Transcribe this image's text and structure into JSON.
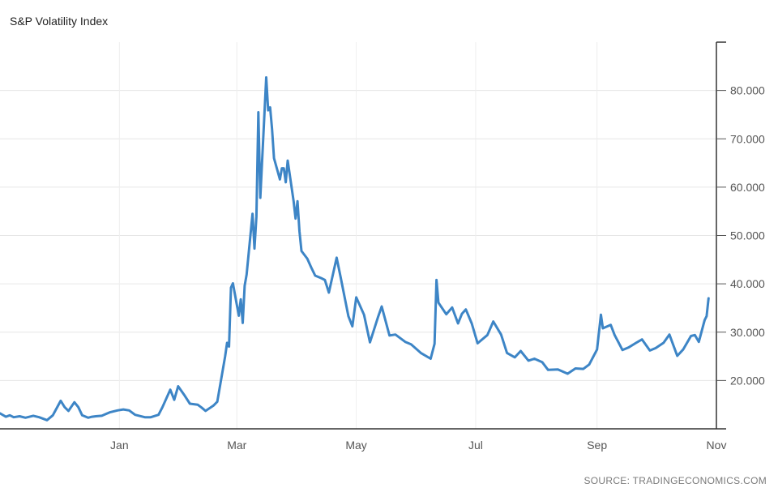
{
  "chart_data": {
    "type": "line",
    "title": "S&P Volatility Index",
    "source": "SOURCE: TRADINGECONOMICS.COM",
    "line_color": "#3d85c6",
    "grid": true,
    "y_axis_side": "right",
    "ylim": [
      10,
      90
    ],
    "yticks": [
      20,
      30,
      40,
      50,
      60,
      70,
      80
    ],
    "ytick_labels": [
      "20.000",
      "30.000",
      "40.000",
      "50.000",
      "60.000",
      "70.000",
      "80.000"
    ],
    "xlim": [
      "2019-11-01",
      "2020-11-01"
    ],
    "xticks": [
      "2020-01-01",
      "2020-03-01",
      "2020-05-01",
      "2020-07-01",
      "2020-09-01",
      "2020-11-01"
    ],
    "xtick_labels": [
      "Jan",
      "Mar",
      "May",
      "Jul",
      "Sep",
      "Nov"
    ],
    "series": [
      {
        "x": [
          "2019-11-01",
          "2019-11-04",
          "2019-11-06",
          "2019-11-08",
          "2019-11-11",
          "2019-11-14",
          "2019-11-18",
          "2019-11-21",
          "2019-11-25",
          "2019-11-28",
          "2019-12-02",
          "2019-12-04",
          "2019-12-06",
          "2019-12-09",
          "2019-12-11",
          "2019-12-13",
          "2019-12-16",
          "2019-12-18",
          "2019-12-20",
          "2019-12-23",
          "2019-12-27",
          "2019-12-31",
          "2020-01-03",
          "2020-01-06",
          "2020-01-09",
          "2020-01-14",
          "2020-01-17",
          "2020-01-21",
          "2020-01-23",
          "2020-01-27",
          "2020-01-29",
          "2020-01-31",
          "2020-02-03",
          "2020-02-06",
          "2020-02-10",
          "2020-02-12",
          "2020-02-14",
          "2020-02-18",
          "2020-02-20",
          "2020-02-24",
          "2020-02-25",
          "2020-02-26",
          "2020-02-27",
          "2020-02-28",
          "2020-03-02",
          "2020-03-03",
          "2020-03-04",
          "2020-03-05",
          "2020-03-06",
          "2020-03-09",
          "2020-03-10",
          "2020-03-11",
          "2020-03-12",
          "2020-03-13",
          "2020-03-16",
          "2020-03-17",
          "2020-03-18",
          "2020-03-19",
          "2020-03-20",
          "2020-03-23",
          "2020-03-24",
          "2020-03-25",
          "2020-03-26",
          "2020-03-27",
          "2020-03-30",
          "2020-03-31",
          "2020-04-01",
          "2020-04-02",
          "2020-04-03",
          "2020-04-06",
          "2020-04-08",
          "2020-04-10",
          "2020-04-13",
          "2020-04-15",
          "2020-04-17",
          "2020-04-21",
          "2020-04-23",
          "2020-04-27",
          "2020-04-29",
          "2020-05-01",
          "2020-05-05",
          "2020-05-08",
          "2020-05-12",
          "2020-05-14",
          "2020-05-18",
          "2020-05-21",
          "2020-05-26",
          "2020-05-29",
          "2020-06-03",
          "2020-06-08",
          "2020-06-10",
          "2020-06-11",
          "2020-06-12",
          "2020-06-16",
          "2020-06-19",
          "2020-06-22",
          "2020-06-24",
          "2020-06-26",
          "2020-06-29",
          "2020-07-02",
          "2020-07-07",
          "2020-07-10",
          "2020-07-14",
          "2020-07-17",
          "2020-07-21",
          "2020-07-24",
          "2020-07-28",
          "2020-07-31",
          "2020-08-04",
          "2020-08-07",
          "2020-08-12",
          "2020-08-17",
          "2020-08-21",
          "2020-08-25",
          "2020-08-28",
          "2020-09-01",
          "2020-09-03",
          "2020-09-04",
          "2020-09-08",
          "2020-09-10",
          "2020-09-14",
          "2020-09-17",
          "2020-09-21",
          "2020-09-24",
          "2020-09-28",
          "2020-10-01",
          "2020-10-05",
          "2020-10-08",
          "2020-10-12",
          "2020-10-15",
          "2020-10-19",
          "2020-10-21",
          "2020-10-23",
          "2020-10-26",
          "2020-10-27",
          "2020-10-28"
        ],
        "y": [
          13.2,
          12.5,
          12.8,
          12.4,
          12.6,
          12.3,
          12.7,
          12.4,
          11.8,
          12.8,
          15.8,
          14.5,
          13.7,
          15.5,
          14.5,
          12.8,
          12.3,
          12.5,
          12.6,
          12.7,
          13.4,
          13.8,
          14.0,
          13.8,
          12.9,
          12.4,
          12.4,
          12.9,
          14.5,
          18.1,
          16.0,
          18.8,
          17.1,
          15.2,
          15.0,
          14.4,
          13.7,
          14.8,
          15.6,
          25.0,
          27.8,
          27.0,
          39.2,
          40.1,
          33.4,
          36.8,
          31.9,
          39.6,
          41.9,
          54.5,
          47.3,
          53.9,
          75.5,
          57.8,
          82.7,
          75.9,
          76.5,
          72.0,
          66.0,
          61.6,
          63.9,
          63.9,
          61.0,
          65.5,
          57.1,
          53.5,
          57.1,
          50.9,
          46.8,
          45.2,
          43.4,
          41.7,
          41.2,
          40.8,
          38.2,
          45.4,
          41.4,
          33.3,
          31.2,
          37.2,
          33.6,
          27.9,
          33.0,
          35.3,
          29.3,
          29.5,
          28.0,
          27.5,
          25.7,
          24.5,
          27.6,
          40.8,
          36.1,
          33.7,
          35.1,
          31.8,
          33.8,
          34.7,
          31.8,
          27.7,
          29.4,
          32.2,
          29.5,
          25.7,
          24.8,
          26.1,
          24.1,
          24.5,
          23.8,
          22.2,
          22.3,
          21.4,
          22.5,
          22.4,
          23.3,
          26.4,
          33.6,
          30.8,
          31.5,
          29.4,
          26.3,
          26.8,
          27.8,
          28.5,
          26.2,
          26.7,
          27.8,
          29.5,
          25.1,
          26.4,
          29.2,
          29.4,
          28.0,
          32.5,
          33.3,
          37.0
        ]
      }
    ]
  }
}
